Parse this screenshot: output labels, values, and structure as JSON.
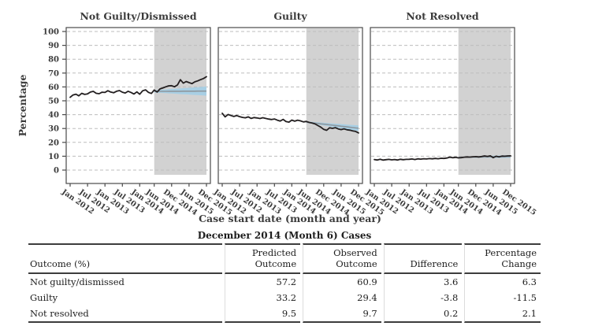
{
  "chart_data": {
    "type": "line",
    "xlabel": "Case start date (month and year)",
    "ylabel": "Percentage",
    "ylim": [
      0,
      100
    ],
    "ytick_step": 10,
    "grid": "horizontal-dashed",
    "forecast_start_index": 29,
    "x_tick_indices": [
      0,
      6,
      12,
      18,
      24,
      29,
      35,
      41,
      47
    ],
    "x_tick_labels": [
      "Jan 2012",
      "Jul 2012",
      "Jan 2013",
      "Jul 2013",
      "Jan 2014",
      "Jun 2014",
      "Dec 2014",
      "Jun 2015",
      "Dec 2015"
    ],
    "colors": {
      "observed_line": "#231f20",
      "forecast_band": "#a8cfe4",
      "forecast_center_line": "#8e979e",
      "forecast_region": "#d2d2d2",
      "gridline": "#bdbdbd",
      "axis": "#4a4a4a",
      "text": "#3b3b3b"
    },
    "panels": [
      {
        "title": "Not Guilty/Dismissed",
        "observed": [
          52.5,
          54.2,
          54.8,
          53.6,
          55.4,
          54.6,
          55.0,
          56.3,
          56.8,
          55.4,
          55.1,
          56.2,
          56.0,
          57.3,
          56.3,
          55.8,
          56.9,
          57.4,
          56.2,
          55.6,
          56.9,
          56.0,
          54.9,
          56.4,
          54.7,
          57.2,
          57.9,
          56.1,
          55.3,
          57.8,
          56.3,
          58.6,
          59.3,
          60.1,
          60.8,
          60.9,
          60.1,
          61.4,
          65.2,
          62.7,
          63.9,
          63.1,
          62.4,
          63.7,
          64.4,
          65.3,
          66.1,
          67.4
        ],
        "forecast": {
          "center_start": 56.8,
          "center_end": 57.0,
          "half_width_start": 0.8,
          "half_width_end": 3.3
        }
      },
      {
        "title": "Guilty",
        "observed": [
          41.0,
          38.4,
          40.1,
          39.4,
          38.7,
          39.3,
          38.6,
          38.0,
          37.7,
          38.4,
          37.3,
          37.9,
          37.6,
          37.2,
          37.8,
          37.3,
          36.8,
          36.5,
          36.9,
          36.0,
          35.4,
          36.6,
          35.0,
          34.6,
          36.1,
          35.3,
          36.0,
          35.5,
          34.8,
          35.1,
          34.4,
          33.9,
          33.3,
          32.1,
          31.0,
          29.4,
          28.7,
          30.5,
          30.1,
          30.6,
          29.7,
          29.2,
          29.8,
          29.1,
          28.8,
          28.3,
          27.9,
          26.8
        ],
        "forecast": {
          "center_start": 34.6,
          "center_end": 30.2,
          "half_width_start": 0.5,
          "half_width_end": 2.0
        }
      },
      {
        "title": "Not Resolved",
        "observed": [
          7.6,
          7.3,
          7.8,
          7.2,
          7.5,
          7.7,
          7.4,
          7.6,
          7.3,
          7.8,
          7.5,
          7.7,
          7.8,
          8.0,
          7.6,
          8.1,
          7.9,
          8.2,
          8.0,
          8.3,
          8.1,
          8.4,
          8.2,
          8.5,
          8.4,
          8.7,
          9.3,
          8.9,
          9.2,
          8.8,
          9.0,
          9.3,
          9.5,
          9.4,
          9.6,
          9.7,
          9.5,
          9.8,
          10.2,
          9.9,
          10.3,
          9.0,
          10.0,
          9.5,
          10.1,
          10.0,
          10.2,
          10.3
        ],
        "forecast": {
          "center_start": 9.2,
          "center_end": 9.8,
          "half_width_start": 0.3,
          "half_width_end": 1.0
        }
      }
    ]
  },
  "table": {
    "title": "December 2014 (Month 6) Cases",
    "col_headers": [
      {
        "lines": [
          "Outcome (%)"
        ]
      },
      {
        "lines": [
          "Predicted",
          "Outcome"
        ]
      },
      {
        "lines": [
          "Observed",
          "Outcome"
        ]
      },
      {
        "lines": [
          "Difference"
        ]
      },
      {
        "lines": [
          "Percentage",
          "Change"
        ]
      }
    ],
    "rows": [
      [
        "Not guilty/dismissed",
        "57.2",
        "60.9",
        "3.6",
        "6.3"
      ],
      [
        "Guilty",
        "33.2",
        "29.4",
        "-3.8",
        "-11.5"
      ],
      [
        "Not resolved",
        "9.5",
        "9.7",
        "0.2",
        "2.1"
      ]
    ]
  }
}
